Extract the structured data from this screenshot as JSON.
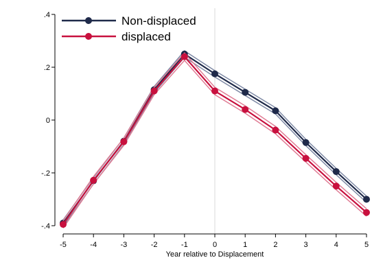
{
  "chart_data": {
    "type": "line",
    "xlabel": "Year relative to Displacement",
    "ylabel": "",
    "x": [
      -5,
      -4,
      -3,
      -2,
      -1,
      0,
      1,
      2,
      3,
      4,
      5
    ],
    "xlim": [
      -5,
      5
    ],
    "ylim": [
      -0.4,
      0.4
    ],
    "yticks": [
      -0.4,
      -0.2,
      0,
      0.2,
      0.4
    ],
    "ytick_labels": [
      "-.4",
      "-.2",
      "0",
      ".2",
      ".4"
    ],
    "xtick_labels": [
      "-5",
      "-4",
      "-3",
      "-2",
      "-1",
      "0",
      "1",
      "2",
      "3",
      "4",
      "5"
    ],
    "reference_line_x": 0,
    "legend_position": "top-left",
    "grid": false,
    "series": [
      {
        "name": "Non-displaced",
        "color": "#1f2a4a",
        "band_color": "#7f8aa5",
        "values": [
          -0.39,
          -0.23,
          -0.08,
          0.115,
          0.25,
          0.175,
          0.105,
          0.035,
          -0.085,
          -0.195,
          -0.3
        ],
        "ci_halfwidth": 0.012
      },
      {
        "name": "displaced",
        "color": "#c8103e",
        "band_color": "#e07d95",
        "values": [
          -0.395,
          -0.228,
          -0.082,
          0.11,
          0.24,
          0.11,
          0.04,
          -0.038,
          -0.145,
          -0.25,
          -0.35
        ],
        "ci_halfwidth": 0.014
      }
    ]
  }
}
